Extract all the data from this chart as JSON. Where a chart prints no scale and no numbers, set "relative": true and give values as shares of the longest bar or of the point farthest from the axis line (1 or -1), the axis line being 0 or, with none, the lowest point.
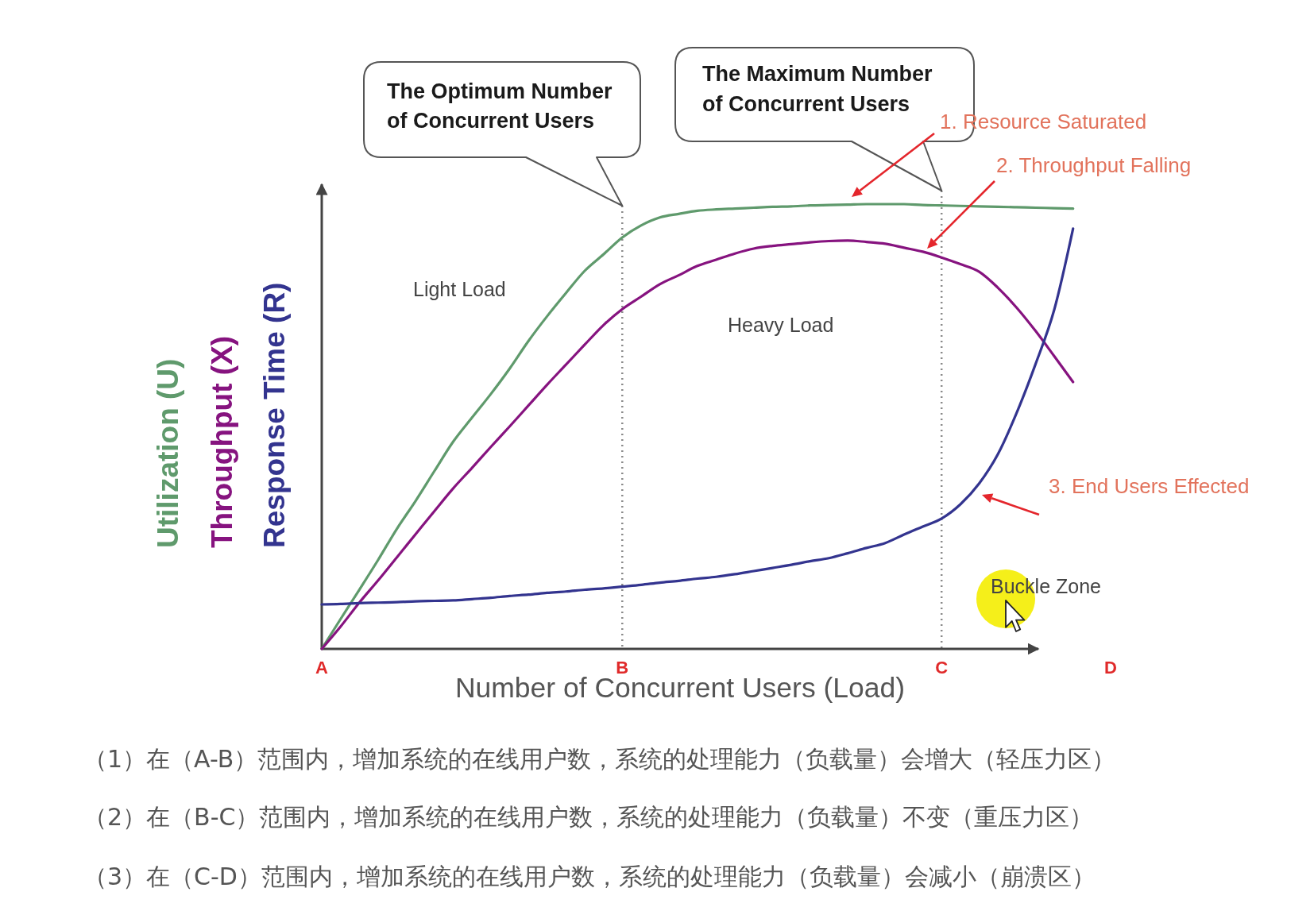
{
  "chart_data": {
    "type": "line",
    "relative": true,
    "categories": [
      "A",
      null,
      null,
      null,
      null,
      null,
      null,
      null,
      null,
      null,
      null,
      null,
      null,
      null,
      null,
      null,
      "B",
      null,
      null,
      null,
      null,
      null,
      null,
      null,
      null,
      null,
      null,
      null,
      null,
      null,
      null,
      null,
      null,
      "C",
      null,
      null,
      null,
      null,
      null,
      null,
      null,
      null,
      "D"
    ],
    "xlabel": "Number of Concurrent Users (Load)",
    "series": [
      {
        "name": "Utilization (U)",
        "color": "#5f9a6c",
        "values": [
          0,
          0.067,
          0.133,
          0.2,
          0.27,
          0.333,
          0.4,
          0.466,
          0.52,
          0.573,
          0.63,
          0.692,
          0.748,
          0.8,
          0.85,
          0.887,
          0.925,
          0.952,
          0.97,
          0.978,
          0.985,
          0.988,
          0.99,
          0.992,
          0.994,
          0.995,
          0.997,
          0.998,
          0.999,
          1,
          1,
          1,
          0.998,
          0.997,
          0.996,
          0.995,
          0.994,
          0.993,
          0.992,
          0.991,
          0.99,
          null,
          null
        ]
      },
      {
        "name": "Throughput (X)",
        "color": "#86137f",
        "values": [
          0,
          0.05,
          0.104,
          0.154,
          0.206,
          0.258,
          0.31,
          0.361,
          0.407,
          0.454,
          0.5,
          0.547,
          0.594,
          0.639,
          0.684,
          0.728,
          0.764,
          0.792,
          0.82,
          0.84,
          0.861,
          0.875,
          0.889,
          0.9,
          0.906,
          0.91,
          0.914,
          0.917,
          0.918,
          0.915,
          0.911,
          0.902,
          0.893,
          0.88,
          0.865,
          0.848,
          0.812,
          0.767,
          0.715,
          0.658,
          0.6,
          null,
          null
        ]
      },
      {
        "name": "Response Time (R)",
        "color": "#33348f",
        "values": [
          0.1,
          0.101,
          0.103,
          0.104,
          0.105,
          0.107,
          0.108,
          0.109,
          0.112,
          0.115,
          0.119,
          0.122,
          0.126,
          0.129,
          0.133,
          0.136,
          0.14,
          0.144,
          0.149,
          0.153,
          0.158,
          0.162,
          0.168,
          0.175,
          0.182,
          0.189,
          0.197,
          0.204,
          0.215,
          0.227,
          0.238,
          0.257,
          0.275,
          0.293,
          0.325,
          0.372,
          0.438,
          0.531,
          0.64,
          0.763,
          0.945,
          null,
          null
        ]
      }
    ],
    "ref_lines": [
      {
        "axis": "x",
        "value": "B",
        "line_style": "dotted"
      },
      {
        "axis": "x",
        "value": "C",
        "line_style": "dotted"
      }
    ],
    "annotations": [
      "The Optimum Number of Concurrent Users",
      "The Maximum Number of Concurrent Users",
      "1. Resource Saturated",
      "2. Throughput Falling",
      "3. End Users Effected",
      "Light Load",
      "Heavy Load",
      "Buckle Zone",
      "（1）在（A-B）范围内，增加系统的在线用户数，系统的处理能力（负载量）会增大（轻压力区）",
      "（2）在（B-C）范围内，增加系统的在线用户数，系统的处理能力（负载量）不变（重压力区）",
      "（3）在（C-D）范围内，增加系统的在线用户数，系统的处理能力（负载量）会减小（崩溃区）"
    ]
  }
}
